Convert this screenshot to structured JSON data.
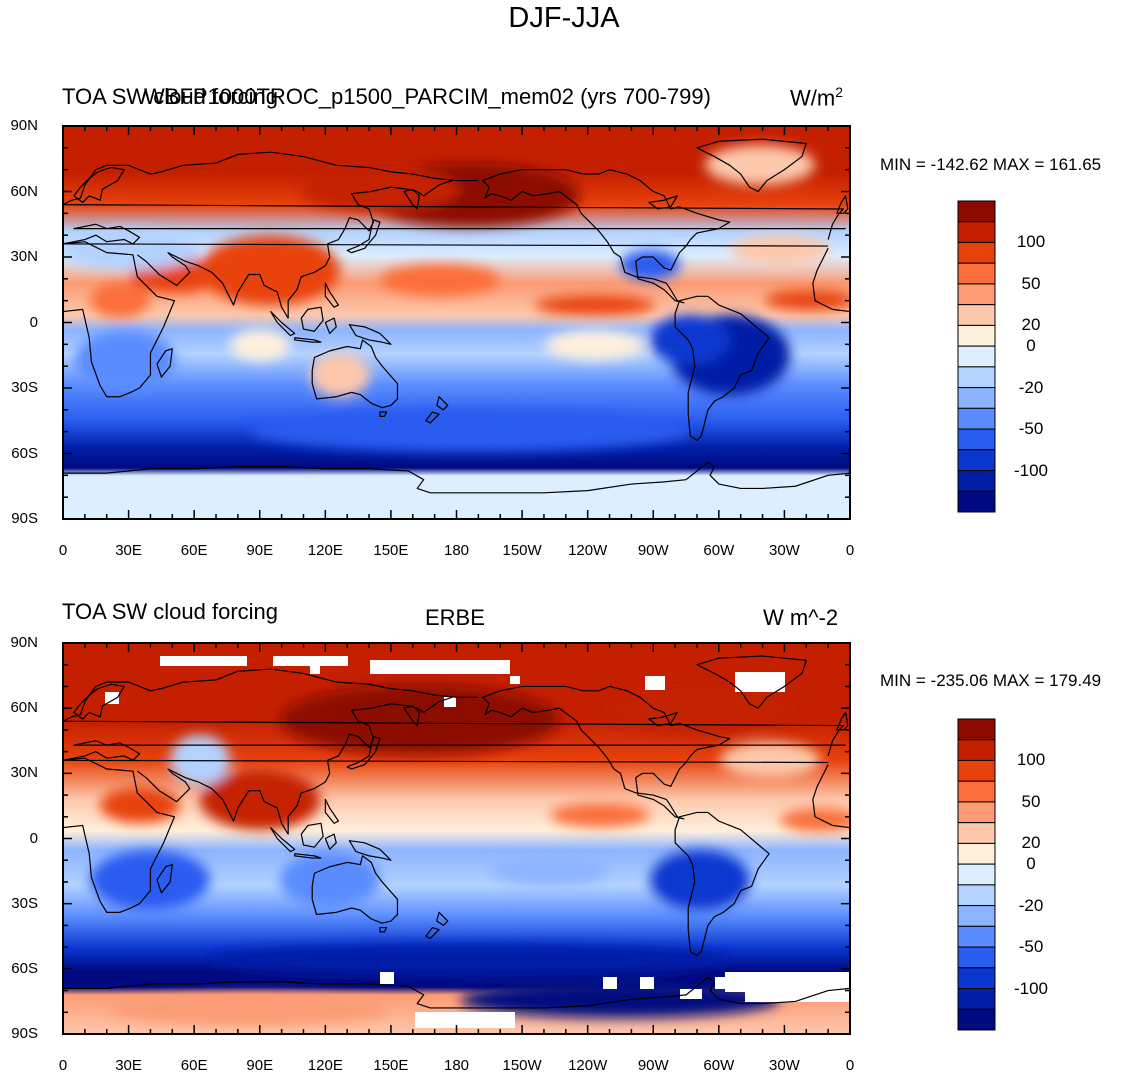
{
  "title": "DJF-JJA",
  "panels": [
    {
      "left_title": "TOA SW cloud forcing",
      "center_title": "WBFP1000TROC_p1500_PARCIM_mem02 (yrs 700-799)",
      "units_base": "W/m",
      "units_sup": "2",
      "minmax": "MIN = -142.62 MAX = 161.65",
      "has_missing": false
    },
    {
      "left_title": "TOA SW cloud forcing",
      "center_title": "ERBE",
      "units_base": "W m^-2",
      "units_sup": "",
      "minmax": "MIN = -235.06 MAX = 179.49",
      "has_missing": true
    }
  ],
  "lat_labels": [
    "90N",
    "60N",
    "30N",
    "0",
    "30S",
    "60S",
    "90S"
  ],
  "lon_labels": [
    "0",
    "30E",
    "60E",
    "90E",
    "120E",
    "150E",
    "180",
    "150W",
    "120W",
    "90W",
    "60W",
    "30W",
    "0"
  ],
  "colorbar": {
    "colors": [
      "#8c0a00",
      "#c42000",
      "#e8420c",
      "#fb6e3b",
      "#fc9b74",
      "#fdc8ac",
      "#fff0dc",
      "#dceeff",
      "#b3d2ff",
      "#8db4ff",
      "#5a8cff",
      "#2a5cf0",
      "#0a37d0",
      "#001ea6",
      "#000a80"
    ],
    "labels": [
      "100",
      "50",
      "20",
      "0",
      "-20",
      "-50",
      "-100"
    ]
  },
  "colors": {
    "coast": "#000000",
    "missing": "#ffffff"
  }
}
